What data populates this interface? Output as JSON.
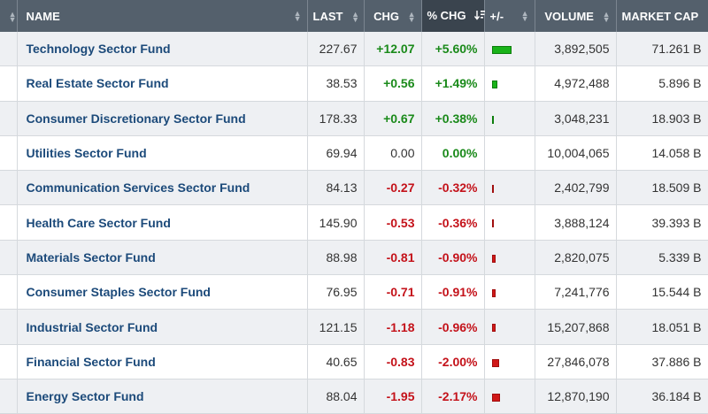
{
  "colors": {
    "header_bg": "#54606c",
    "positive": "#1a8a1a",
    "negative": "#c4121a",
    "name_link": "#1c4a7a"
  },
  "header": {
    "name": "NAME",
    "last": "LAST",
    "chg": "CHG",
    "pct_chg": "% CHG",
    "plus_minus": "+/-",
    "volume": "VOLUME",
    "market_cap": "MARKET CAP"
  },
  "rows": [
    {
      "name": "Technology Sector Fund",
      "last": "227.67",
      "chg": "+12.07",
      "pct": "+5.60%",
      "pct_value": 5.6,
      "volume": "3,892,505",
      "market_cap": "71.261 B"
    },
    {
      "name": "Real Estate Sector Fund",
      "last": "38.53",
      "chg": "+0.56",
      "pct": "+1.49%",
      "pct_value": 1.49,
      "volume": "4,972,488",
      "market_cap": "5.896 B"
    },
    {
      "name": "Consumer Discretionary Sector Fund",
      "last": "178.33",
      "chg": "+0.67",
      "pct": "+0.38%",
      "pct_value": 0.38,
      "volume": "3,048,231",
      "market_cap": "18.903 B"
    },
    {
      "name": "Utilities Sector Fund",
      "last": "69.94",
      "chg": "0.00",
      "pct": "0.00%",
      "pct_value": 0.0,
      "volume": "10,004,065",
      "market_cap": "14.058 B"
    },
    {
      "name": "Communication Services Sector Fund",
      "last": "84.13",
      "chg": "-0.27",
      "pct": "-0.32%",
      "pct_value": -0.32,
      "volume": "2,402,799",
      "market_cap": "18.509 B"
    },
    {
      "name": "Health Care Sector Fund",
      "last": "145.90",
      "chg": "-0.53",
      "pct": "-0.36%",
      "pct_value": -0.36,
      "volume": "3,888,124",
      "market_cap": "39.393 B"
    },
    {
      "name": "Materials Sector Fund",
      "last": "88.98",
      "chg": "-0.81",
      "pct": "-0.90%",
      "pct_value": -0.9,
      "volume": "2,820,075",
      "market_cap": "5.339 B"
    },
    {
      "name": "Consumer Staples Sector Fund",
      "last": "76.95",
      "chg": "-0.71",
      "pct": "-0.91%",
      "pct_value": -0.91,
      "volume": "7,241,776",
      "market_cap": "15.544 B"
    },
    {
      "name": "Industrial Sector Fund",
      "last": "121.15",
      "chg": "-1.18",
      "pct": "-0.96%",
      "pct_value": -0.96,
      "volume": "15,207,868",
      "market_cap": "18.051 B"
    },
    {
      "name": "Financial Sector Fund",
      "last": "40.65",
      "chg": "-0.83",
      "pct": "-2.00%",
      "pct_value": -2.0,
      "volume": "27,846,078",
      "market_cap": "37.886 B"
    },
    {
      "name": "Energy Sector Fund",
      "last": "88.04",
      "chg": "-1.95",
      "pct": "-2.17%",
      "pct_value": -2.17,
      "volume": "12,870,190",
      "market_cap": "36.184 B"
    }
  ]
}
